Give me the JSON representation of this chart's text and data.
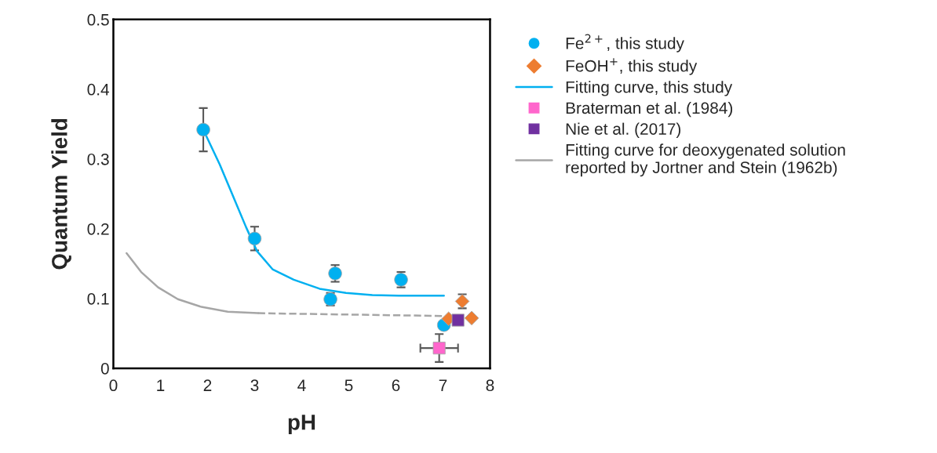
{
  "chart_data": {
    "type": "scatter",
    "xlabel": "pH",
    "ylabel": "Quantum Yield",
    "xlim": [
      0,
      8
    ],
    "ylim": [
      0,
      0.5
    ],
    "xticks": [
      0,
      1,
      2,
      3,
      4,
      5,
      6,
      7,
      8
    ],
    "yticks": [
      0,
      0.1,
      0.2,
      0.3,
      0.4,
      0.5
    ],
    "grid": false,
    "legend": "right",
    "series": [
      {
        "name": "Fe$^{2+}$, this study",
        "marker": "circle",
        "color": "#00b0f0",
        "x": [
          1.91,
          3.0,
          4.61,
          4.71,
          6.11,
          7.02
        ],
        "values": [
          0.342,
          0.186,
          0.099,
          0.136,
          0.127,
          0.062
        ],
        "errors": [
          0.031,
          0.017,
          0.009,
          0.012,
          0.011,
          null
        ]
      },
      {
        "name": "FeOH$^{+}$, this study",
        "marker": "diamond",
        "color": "#ed7d31",
        "x": [
          7.12,
          7.41,
          7.61
        ],
        "values": [
          0.071,
          0.096,
          0.072
        ],
        "errors": [
          null,
          0.01,
          null
        ]
      },
      {
        "name": "Fitting curve, this study",
        "type": "line",
        "marker": "none",
        "line_style": "solid",
        "color": "#00b0f0",
        "x": [
          1.91,
          2.26,
          2.54,
          2.82,
          3.05,
          3.38,
          3.83,
          4.38,
          4.94,
          5.5,
          6.06,
          7.02
        ],
        "values": [
          0.342,
          0.292,
          0.247,
          0.202,
          0.168,
          0.142,
          0.127,
          0.114,
          0.108,
          0.105,
          0.104,
          0.104
        ]
      },
      {
        "name": "Braterman et al. (1984)",
        "marker": "square",
        "color": "#ff66cc",
        "x": [
          6.92
        ],
        "values": [
          0.029
        ],
        "errors": [
          0.02
        ],
        "xerrors": [
          0.4
        ]
      },
      {
        "name": "Nie et al. (2017)",
        "marker": "square",
        "color": "#7030a0",
        "x": [
          7.32
        ],
        "values": [
          0.069
        ]
      },
      {
        "name": "Fitting curve for deoxygenated solution\nreported by Jortner and Stein (1962b)",
        "type": "line",
        "marker": "none",
        "line_style": "solid",
        "color": "#a6a6a6",
        "x": [
          0.28,
          0.59,
          0.95,
          1.37,
          1.87,
          2.43,
          3.07
        ],
        "values": [
          0.165,
          0.138,
          0.116,
          0.099,
          0.088,
          0.081,
          0.079
        ]
      },
      {
        "type": "line",
        "marker": "none",
        "line_style": "dashed",
        "color": "#a6a6a6",
        "x": [
          3.07,
          7.0
        ],
        "values": [
          0.079,
          0.075
        ]
      }
    ]
  }
}
